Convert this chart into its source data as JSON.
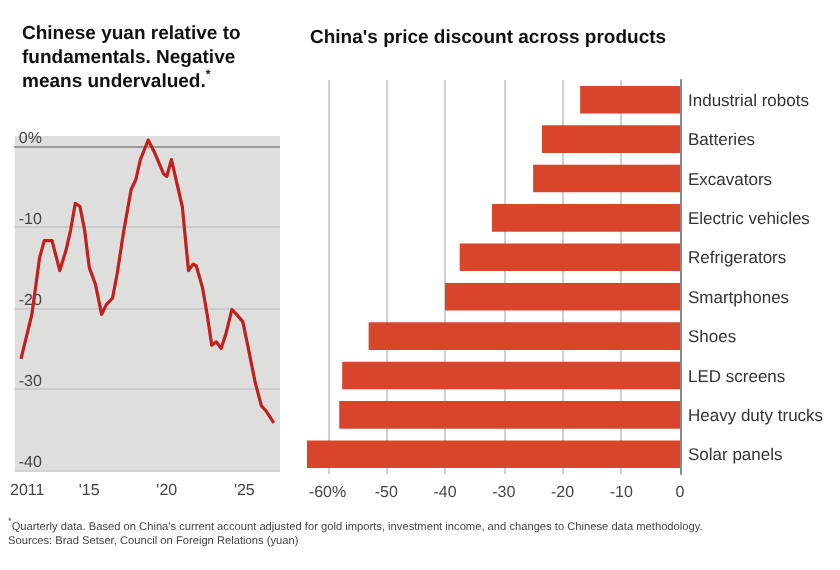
{
  "chart_data": [
    {
      "type": "line",
      "title": "Chinese yuan relative to fundamentals. Negative means undervalued.$^{*}$",
      "x": [
        2010.6,
        2011.3,
        2011.8,
        2012.1,
        2012.6,
        2013.1,
        2013.5,
        2013.8,
        2014.1,
        2014.4,
        2014.7,
        2015.0,
        2015.4,
        2015.8,
        2016.1,
        2016.5,
        2016.8,
        2017.2,
        2017.7,
        2018.0,
        2018.3,
        2018.8,
        2019.2,
        2019.8,
        2020.0,
        2020.3,
        2020.6,
        2021.0,
        2021.4,
        2021.7,
        2021.9,
        2022.3,
        2022.6,
        2022.9,
        2023.2,
        2023.5,
        2023.8,
        2024.2,
        2024.5,
        2024.9,
        2025.3,
        2025.7,
        2026.1,
        2026.4,
        2026.9
      ],
      "series": [
        {
          "color": "#c0201e",
          "values": [
            -26.3,
            -20.8,
            -13.8,
            -11.7,
            -11.7,
            -15.4,
            -12.9,
            -10.4,
            -7.1,
            -7.5,
            -10.4,
            -15.0,
            -17.1,
            -20.8,
            -19.6,
            -18.8,
            -15.8,
            -10.8,
            -5.4,
            -4.2,
            -1.7,
            0.7,
            -0.8,
            -3.5,
            -3.8,
            -1.7,
            -4.2,
            -7.5,
            -15.4,
            -14.6,
            -14.8,
            -17.5,
            -20.8,
            -24.6,
            -24.2,
            -25.0,
            -23.3,
            -20.2,
            -20.8,
            -21.7,
            -25.4,
            -29.2,
            -32.1,
            -32.7,
            -34.2
          ]
        }
      ],
      "xlim": [
        2010.2,
        2027.3
      ],
      "ylim": [
        -40,
        1.2
      ],
      "xticks": [
        {
          "value": 2011,
          "label": "2011"
        },
        {
          "value": 2015,
          "label": "'15"
        },
        {
          "value": 2020,
          "label": "'20"
        },
        {
          "value": 2025,
          "label": "'25"
        }
      ],
      "yticks": [
        {
          "value": 0,
          "label": "0%"
        },
        -10,
        -20,
        -30,
        -40
      ],
      "grid": "y",
      "marker": "none",
      "annotations": [
        "$^{*}$Quarterly data. Based on China's current account adjusted for gold imports, investment income, and changes to Chinese data methodology.",
        "Sources: Brad Setser, Council on Foreign Relations (yuan)"
      ]
    },
    {
      "type": "bar",
      "orientation": "horizontal",
      "title": "China's price discount across products",
      "categories": [
        "Industrial robots",
        "Batteries",
        "Excavators",
        "Electric vehicles",
        "Refrigerators",
        "Smartphones",
        "Shoes",
        "LED screens",
        "Heavy duty trucks",
        "Solar panels"
      ],
      "values": [
        -17,
        -23.5,
        -25,
        -32,
        -37.5,
        -40,
        -53,
        -57.5,
        -58,
        -63.5
      ],
      "color": "#d9452b",
      "xlim": [
        -64,
        0
      ],
      "xticks": [
        {
          "value": -60,
          "label": "-60%"
        },
        -50,
        -40,
        -30,
        -20,
        -10,
        0
      ],
      "grid": "x"
    }
  ]
}
